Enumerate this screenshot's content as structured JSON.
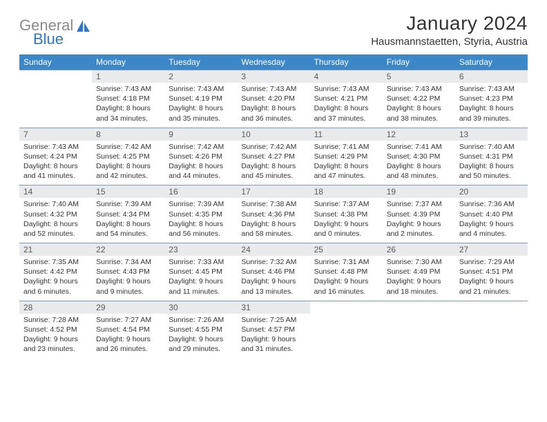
{
  "brand": {
    "part1": "General",
    "part2": "Blue"
  },
  "title": "January 2024",
  "location": "Hausmannstaetten, Styria, Austria",
  "colors": {
    "header_bg": "#3c87c7",
    "header_text": "#ffffff",
    "daynum_bg": "#e9eaeb",
    "border": "#7a99b5",
    "logo_gray": "#8a8a8a",
    "logo_blue": "#2f78c4"
  },
  "weekdays": [
    "Sunday",
    "Monday",
    "Tuesday",
    "Wednesday",
    "Thursday",
    "Friday",
    "Saturday"
  ],
  "weeks": [
    [
      {
        "n": "",
        "sunrise": "",
        "sunset": "",
        "daylight": ""
      },
      {
        "n": "1",
        "sunrise": "Sunrise: 7:43 AM",
        "sunset": "Sunset: 4:18 PM",
        "daylight": "Daylight: 8 hours and 34 minutes."
      },
      {
        "n": "2",
        "sunrise": "Sunrise: 7:43 AM",
        "sunset": "Sunset: 4:19 PM",
        "daylight": "Daylight: 8 hours and 35 minutes."
      },
      {
        "n": "3",
        "sunrise": "Sunrise: 7:43 AM",
        "sunset": "Sunset: 4:20 PM",
        "daylight": "Daylight: 8 hours and 36 minutes."
      },
      {
        "n": "4",
        "sunrise": "Sunrise: 7:43 AM",
        "sunset": "Sunset: 4:21 PM",
        "daylight": "Daylight: 8 hours and 37 minutes."
      },
      {
        "n": "5",
        "sunrise": "Sunrise: 7:43 AM",
        "sunset": "Sunset: 4:22 PM",
        "daylight": "Daylight: 8 hours and 38 minutes."
      },
      {
        "n": "6",
        "sunrise": "Sunrise: 7:43 AM",
        "sunset": "Sunset: 4:23 PM",
        "daylight": "Daylight: 8 hours and 39 minutes."
      }
    ],
    [
      {
        "n": "7",
        "sunrise": "Sunrise: 7:43 AM",
        "sunset": "Sunset: 4:24 PM",
        "daylight": "Daylight: 8 hours and 41 minutes."
      },
      {
        "n": "8",
        "sunrise": "Sunrise: 7:42 AM",
        "sunset": "Sunset: 4:25 PM",
        "daylight": "Daylight: 8 hours and 42 minutes."
      },
      {
        "n": "9",
        "sunrise": "Sunrise: 7:42 AM",
        "sunset": "Sunset: 4:26 PM",
        "daylight": "Daylight: 8 hours and 44 minutes."
      },
      {
        "n": "10",
        "sunrise": "Sunrise: 7:42 AM",
        "sunset": "Sunset: 4:27 PM",
        "daylight": "Daylight: 8 hours and 45 minutes."
      },
      {
        "n": "11",
        "sunrise": "Sunrise: 7:41 AM",
        "sunset": "Sunset: 4:29 PM",
        "daylight": "Daylight: 8 hours and 47 minutes."
      },
      {
        "n": "12",
        "sunrise": "Sunrise: 7:41 AM",
        "sunset": "Sunset: 4:30 PM",
        "daylight": "Daylight: 8 hours and 48 minutes."
      },
      {
        "n": "13",
        "sunrise": "Sunrise: 7:40 AM",
        "sunset": "Sunset: 4:31 PM",
        "daylight": "Daylight: 8 hours and 50 minutes."
      }
    ],
    [
      {
        "n": "14",
        "sunrise": "Sunrise: 7:40 AM",
        "sunset": "Sunset: 4:32 PM",
        "daylight": "Daylight: 8 hours and 52 minutes."
      },
      {
        "n": "15",
        "sunrise": "Sunrise: 7:39 AM",
        "sunset": "Sunset: 4:34 PM",
        "daylight": "Daylight: 8 hours and 54 minutes."
      },
      {
        "n": "16",
        "sunrise": "Sunrise: 7:39 AM",
        "sunset": "Sunset: 4:35 PM",
        "daylight": "Daylight: 8 hours and 56 minutes."
      },
      {
        "n": "17",
        "sunrise": "Sunrise: 7:38 AM",
        "sunset": "Sunset: 4:36 PM",
        "daylight": "Daylight: 8 hours and 58 minutes."
      },
      {
        "n": "18",
        "sunrise": "Sunrise: 7:37 AM",
        "sunset": "Sunset: 4:38 PM",
        "daylight": "Daylight: 9 hours and 0 minutes."
      },
      {
        "n": "19",
        "sunrise": "Sunrise: 7:37 AM",
        "sunset": "Sunset: 4:39 PM",
        "daylight": "Daylight: 9 hours and 2 minutes."
      },
      {
        "n": "20",
        "sunrise": "Sunrise: 7:36 AM",
        "sunset": "Sunset: 4:40 PM",
        "daylight": "Daylight: 9 hours and 4 minutes."
      }
    ],
    [
      {
        "n": "21",
        "sunrise": "Sunrise: 7:35 AM",
        "sunset": "Sunset: 4:42 PM",
        "daylight": "Daylight: 9 hours and 6 minutes."
      },
      {
        "n": "22",
        "sunrise": "Sunrise: 7:34 AM",
        "sunset": "Sunset: 4:43 PM",
        "daylight": "Daylight: 9 hours and 9 minutes."
      },
      {
        "n": "23",
        "sunrise": "Sunrise: 7:33 AM",
        "sunset": "Sunset: 4:45 PM",
        "daylight": "Daylight: 9 hours and 11 minutes."
      },
      {
        "n": "24",
        "sunrise": "Sunrise: 7:32 AM",
        "sunset": "Sunset: 4:46 PM",
        "daylight": "Daylight: 9 hours and 13 minutes."
      },
      {
        "n": "25",
        "sunrise": "Sunrise: 7:31 AM",
        "sunset": "Sunset: 4:48 PM",
        "daylight": "Daylight: 9 hours and 16 minutes."
      },
      {
        "n": "26",
        "sunrise": "Sunrise: 7:30 AM",
        "sunset": "Sunset: 4:49 PM",
        "daylight": "Daylight: 9 hours and 18 minutes."
      },
      {
        "n": "27",
        "sunrise": "Sunrise: 7:29 AM",
        "sunset": "Sunset: 4:51 PM",
        "daylight": "Daylight: 9 hours and 21 minutes."
      }
    ],
    [
      {
        "n": "28",
        "sunrise": "Sunrise: 7:28 AM",
        "sunset": "Sunset: 4:52 PM",
        "daylight": "Daylight: 9 hours and 23 minutes."
      },
      {
        "n": "29",
        "sunrise": "Sunrise: 7:27 AM",
        "sunset": "Sunset: 4:54 PM",
        "daylight": "Daylight: 9 hours and 26 minutes."
      },
      {
        "n": "30",
        "sunrise": "Sunrise: 7:26 AM",
        "sunset": "Sunset: 4:55 PM",
        "daylight": "Daylight: 9 hours and 29 minutes."
      },
      {
        "n": "31",
        "sunrise": "Sunrise: 7:25 AM",
        "sunset": "Sunset: 4:57 PM",
        "daylight": "Daylight: 9 hours and 31 minutes."
      },
      {
        "n": "",
        "sunrise": "",
        "sunset": "",
        "daylight": ""
      },
      {
        "n": "",
        "sunrise": "",
        "sunset": "",
        "daylight": ""
      },
      {
        "n": "",
        "sunrise": "",
        "sunset": "",
        "daylight": ""
      }
    ]
  ]
}
